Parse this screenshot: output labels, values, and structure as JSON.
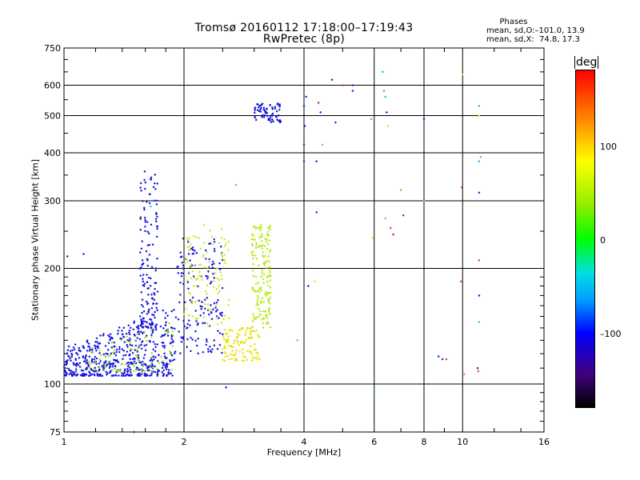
{
  "header": {
    "title": "Tromsø 20160112 17:18:00–17:19:43",
    "subtitle": "RwPretec (8p)",
    "phases_title": "Phases",
    "phases_o": "mean, sd,O:–101.0, 13.9",
    "phases_x": "mean, sd,X:  74.8, 17.3"
  },
  "colorbar": {
    "unit_label": "deg",
    "ticks": [
      "100",
      "0",
      "–100"
    ],
    "colors": [
      "#ff0000",
      "#ffff00",
      "#00ff00",
      "#00e0e0",
      "#0000ff",
      "#000000"
    ]
  },
  "chart_data": {
    "type": "scatter",
    "xlabel": "Frequency [MHz]",
    "ylabel": "Stationary phase Virtual Height [km]",
    "xscale": "log",
    "yscale": "log",
    "xlim": [
      1,
      16
    ],
    "ylim": [
      75,
      750
    ],
    "xticks": [
      1,
      2,
      4,
      6,
      8,
      10,
      16
    ],
    "yticks": [
      75,
      100,
      200,
      300,
      400,
      500,
      600,
      750
    ],
    "grid": true,
    "clusters": [
      {
        "name_hint": "blue O-mode low band",
        "color": "#1010e0",
        "x": [
          1.0,
          1.9
        ],
        "y": [
          105,
          160
        ],
        "count": 520
      },
      {
        "name_hint": "blue O-mode spur",
        "color": "#1010e0",
        "x": [
          1.55,
          1.72
        ],
        "y": [
          140,
          360
        ],
        "count": 150
      },
      {
        "name_hint": "blue O-mode 2 MHz column",
        "color": "#1010e0",
        "x": [
          1.9,
          2.5
        ],
        "y": [
          120,
          240
        ],
        "count": 150
      },
      {
        "name_hint": "green-yellow X-mode low band",
        "color": "#9adf20",
        "x": [
          1.15,
          1.9
        ],
        "y": [
          108,
          150
        ],
        "count": 90
      },
      {
        "name_hint": "yellow-green X-mode 2.4 MHz",
        "color": "#c8e820",
        "x": [
          2.0,
          2.6
        ],
        "y": [
          140,
          260
        ],
        "count": 110
      },
      {
        "name_hint": "yellow X-mode 2.6 MHz base",
        "color": "#e8e000",
        "x": [
          2.5,
          3.1
        ],
        "y": [
          115,
          140
        ],
        "count": 110
      },
      {
        "name_hint": "yellow-green X-mode 3 MHz arm",
        "color": "#b8e810",
        "x": [
          2.95,
          3.3
        ],
        "y": [
          140,
          260
        ],
        "count": 160
      },
      {
        "name_hint": "blue F-region trace",
        "color": "#1010e0",
        "x": [
          3.0,
          3.5
        ],
        "y": [
          480,
          540
        ],
        "count": 70
      }
    ],
    "scattered_points": [
      {
        "x": 4.05,
        "y": 560,
        "color": "#1010e0"
      },
      {
        "x": 4.0,
        "y": 530,
        "color": "#1010e0"
      },
      {
        "x": 4.02,
        "y": 470,
        "color": "#1010e0"
      },
      {
        "x": 4.0,
        "y": 420,
        "color": "#1010e0"
      },
      {
        "x": 4.0,
        "y": 380,
        "color": "#1010e0"
      },
      {
        "x": 4.3,
        "y": 380,
        "color": "#1010e0"
      },
      {
        "x": 4.35,
        "y": 540,
        "color": "#c01040"
      },
      {
        "x": 4.4,
        "y": 510,
        "color": "#1010e0"
      },
      {
        "x": 4.45,
        "y": 420,
        "color": "#e89020"
      },
      {
        "x": 4.7,
        "y": 620,
        "color": "#1010e0"
      },
      {
        "x": 4.8,
        "y": 480,
        "color": "#1010e0"
      },
      {
        "x": 5.0,
        "y": 600,
        "color": "#e01010"
      },
      {
        "x": 5.3,
        "y": 600,
        "color": "#1010e0"
      },
      {
        "x": 5.3,
        "y": 580,
        "color": "#1010e0"
      },
      {
        "x": 4.3,
        "y": 280,
        "color": "#1010e0"
      },
      {
        "x": 4.1,
        "y": 180,
        "color": "#1010e0"
      },
      {
        "x": 4.25,
        "y": 185,
        "color": "#e8e000"
      },
      {
        "x": 3.85,
        "y": 130,
        "color": "#e89020"
      },
      {
        "x": 5.9,
        "y": 490,
        "color": "#20e020"
      },
      {
        "x": 5.95,
        "y": 240,
        "color": "#e8e000"
      },
      {
        "x": 6.0,
        "y": 94,
        "color": "#00c0e0"
      },
      {
        "x": 6.3,
        "y": 650,
        "color": "#00c0e0"
      },
      {
        "x": 6.35,
        "y": 580,
        "color": "#00c0e0"
      },
      {
        "x": 6.4,
        "y": 560,
        "color": "#00c0e0"
      },
      {
        "x": 6.45,
        "y": 510,
        "color": "#1010e0"
      },
      {
        "x": 6.5,
        "y": 470,
        "color": "#e8e000"
      },
      {
        "x": 6.4,
        "y": 270,
        "color": "#e89020"
      },
      {
        "x": 6.6,
        "y": 255,
        "color": "#e04010"
      },
      {
        "x": 6.7,
        "y": 245,
        "color": "#c01040"
      },
      {
        "x": 7.0,
        "y": 320,
        "color": "#e89020"
      },
      {
        "x": 7.1,
        "y": 275,
        "color": "#c01040"
      },
      {
        "x": 8.0,
        "y": 300,
        "color": "#e89020"
      },
      {
        "x": 8.0,
        "y": 490,
        "color": "#1010e0"
      },
      {
        "x": 8.7,
        "y": 118,
        "color": "#1010e0"
      },
      {
        "x": 8.9,
        "y": 116,
        "color": "#1010e0"
      },
      {
        "x": 9.1,
        "y": 116,
        "color": "#e04010"
      },
      {
        "x": 9.9,
        "y": 185,
        "color": "#e04010"
      },
      {
        "x": 9.95,
        "y": 325,
        "color": "#e04010"
      },
      {
        "x": 10.0,
        "y": 640,
        "color": "#c8e820"
      },
      {
        "x": 10.1,
        "y": 106,
        "color": "#e89020"
      },
      {
        "x": 11.0,
        "y": 530,
        "color": "#20e020"
      },
      {
        "x": 11.0,
        "y": 500,
        "color": "#e8e000"
      },
      {
        "x": 11.1,
        "y": 390,
        "color": "#e89020"
      },
      {
        "x": 11.0,
        "y": 380,
        "color": "#00a0ff"
      },
      {
        "x": 11.0,
        "y": 315,
        "color": "#1010e0"
      },
      {
        "x": 11.0,
        "y": 210,
        "color": "#e04010"
      },
      {
        "x": 11.0,
        "y": 170,
        "color": "#1010e0"
      },
      {
        "x": 11.0,
        "y": 145,
        "color": "#20e020"
      },
      {
        "x": 10.9,
        "y": 110,
        "color": "#1010e0"
      },
      {
        "x": 10.95,
        "y": 108,
        "color": "#e04010"
      },
      {
        "x": 2.7,
        "y": 330,
        "color": "#e89020"
      },
      {
        "x": 1.65,
        "y": 290,
        "color": "#00c0e0"
      },
      {
        "x": 2.0,
        "y": 295,
        "color": "#e89020"
      },
      {
        "x": 1.02,
        "y": 215,
        "color": "#1010e0"
      },
      {
        "x": 1.12,
        "y": 218,
        "color": "#1010e0"
      },
      {
        "x": 2.55,
        "y": 98,
        "color": "#1010e0"
      },
      {
        "x": 1.5,
        "y": 75,
        "color": "#1010e0"
      }
    ]
  }
}
